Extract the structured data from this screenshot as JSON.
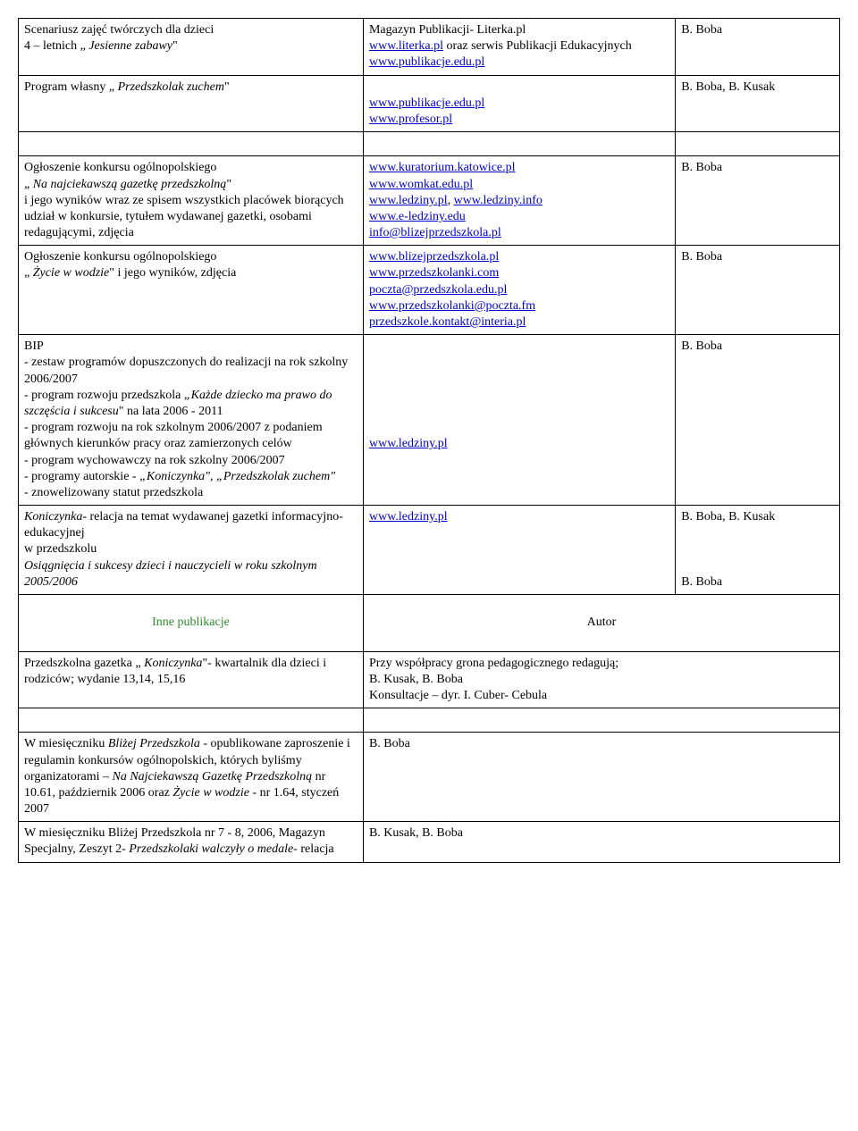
{
  "rows_top": [
    {
      "c1": "Scenariusz zajęć twórczych dla dzieci\n4 – letnich „ <i>Jesienne zabawy</i>\"",
      "c2": "Magazyn Publikacji- Literka.pl\n<a>www.literka.pl</a> oraz  serwis Publikacji Edukacyjnych   <a>www.publikacje.edu.pl</a>",
      "c3": "B. Boba"
    },
    {
      "c1": "Program własny „ <i>Przedszkolak zuchem</i>\"",
      "c2": "\n<a>www.publikacje.edu.pl</a>\n<a>www.profesor.pl</a>",
      "c3": "B. Boba, B. Kusak"
    }
  ],
  "rows_mid": [
    {
      "c1": "Ogłoszenie konkursu ogólnopolskiego\n„ <i>Na najciekawszą gazetkę przedszkolną</i>\"\ni jego wyników wraz ze spisem wszystkich placówek biorących udział w konkursie, tytułem wydawanej gazetki, osobami redagującymi, zdjęcia",
      "c2": "<a>www.kuratorium.katowice.pl</a>\n<a>www.womkat.edu.pl</a>\n<a>www.ledziny.pl</a>,  <a>www.ledziny.info</a>\n<a>www.e-ledziny.edu</a>\n<a>info@blizejprzedszkola.pl</a>",
      "c3": "B. Boba"
    },
    {
      "c1": "Ogłoszenie konkursu ogólnopolskiego\n„ <i>Życie w wodzie</i>\" i jego wyników, zdjęcia",
      "c2": "<a>www.blizejprzedszkola.pl</a>\n<a>www.przedszkolanki.com</a>\n<a>poczta@przedszkola.edu.pl</a>\n<a>www.przedszkolanki@poczta.fm</a>\n<a>przedszkole.kontakt@interia.pl</a>",
      "c3": "B. Boba"
    },
    {
      "c1": "BIP\n- zestaw  programów dopuszczonych do realizacji na rok  szkolny 2006/2007\n- program rozwoju przedszkola <i>„Każde dziecko ma prawo do szczęścia i sukcesu</i>\" na lata 2006 - 2011\n- program rozwoju na  rok szkolnym 2006/2007 z podaniem głównych kierunków pracy oraz  zamierzonych celów\n- program wychowawczy na rok szkolny 2006/2007\n- programy autorskie - <i>„Koniczynka\", „Przedszkolak zuchem\"</i>\n- znowelizowany statut przedszkola",
      "c2": "\n\n\n\n\n\n<a>www.ledziny.pl</a>",
      "c3": "B. Boba"
    },
    {
      "c1": "<i>Koniczynka</i>- relacja na temat wydawanej gazetki informacyjno- edukacyjnej\nw przedszkolu\n<i>Osiągnięcia i sukcesy dzieci i nauczycieli w roku szkolnym 2005/2006</i>",
      "c2": "<a>www.ledziny.pl</a>",
      "c3": "B. Boba, B. Kusak\n\n\n\nB. Boba"
    }
  ],
  "header2": {
    "c1": "Inne publikacje",
    "c2": "Autor"
  },
  "rows_bot": [
    {
      "c1": "Przedszkolna gazetka „ <i>Koniczynka</i>\"- kwartalnik dla dzieci i rodziców; wydanie 13,14, 15,16",
      "c2": "Przy współpracy grona pedagogicznego redagują;\nB. Kusak, B. Boba\nKonsultacje – dyr. I. Cuber- Cebula"
    },
    {
      "c1": "W miesięczniku <i>Bliżej Przedszkola</i> - opublikowane zaproszenie i regulamin konkursów ogólnopolskich, których byliśmy organizatorami – <i>Na Najciekawszą Gazetkę Przedszkolną</i>  nr 10.61, październik 2006 oraz <i>Życie w wodzie</i> -  nr 1.64, styczeń  2007",
      "c2": "B. Boba"
    },
    {
      "c1": "W miesięczniku Bliżej Przedszkola nr 7 - 8, 2006, Magazyn Specjalny, Zeszyt 2- <i>Przedszkolaki walczyły o medale-</i> relacja",
      "c2": "B. Kusak, B. Boba"
    }
  ]
}
